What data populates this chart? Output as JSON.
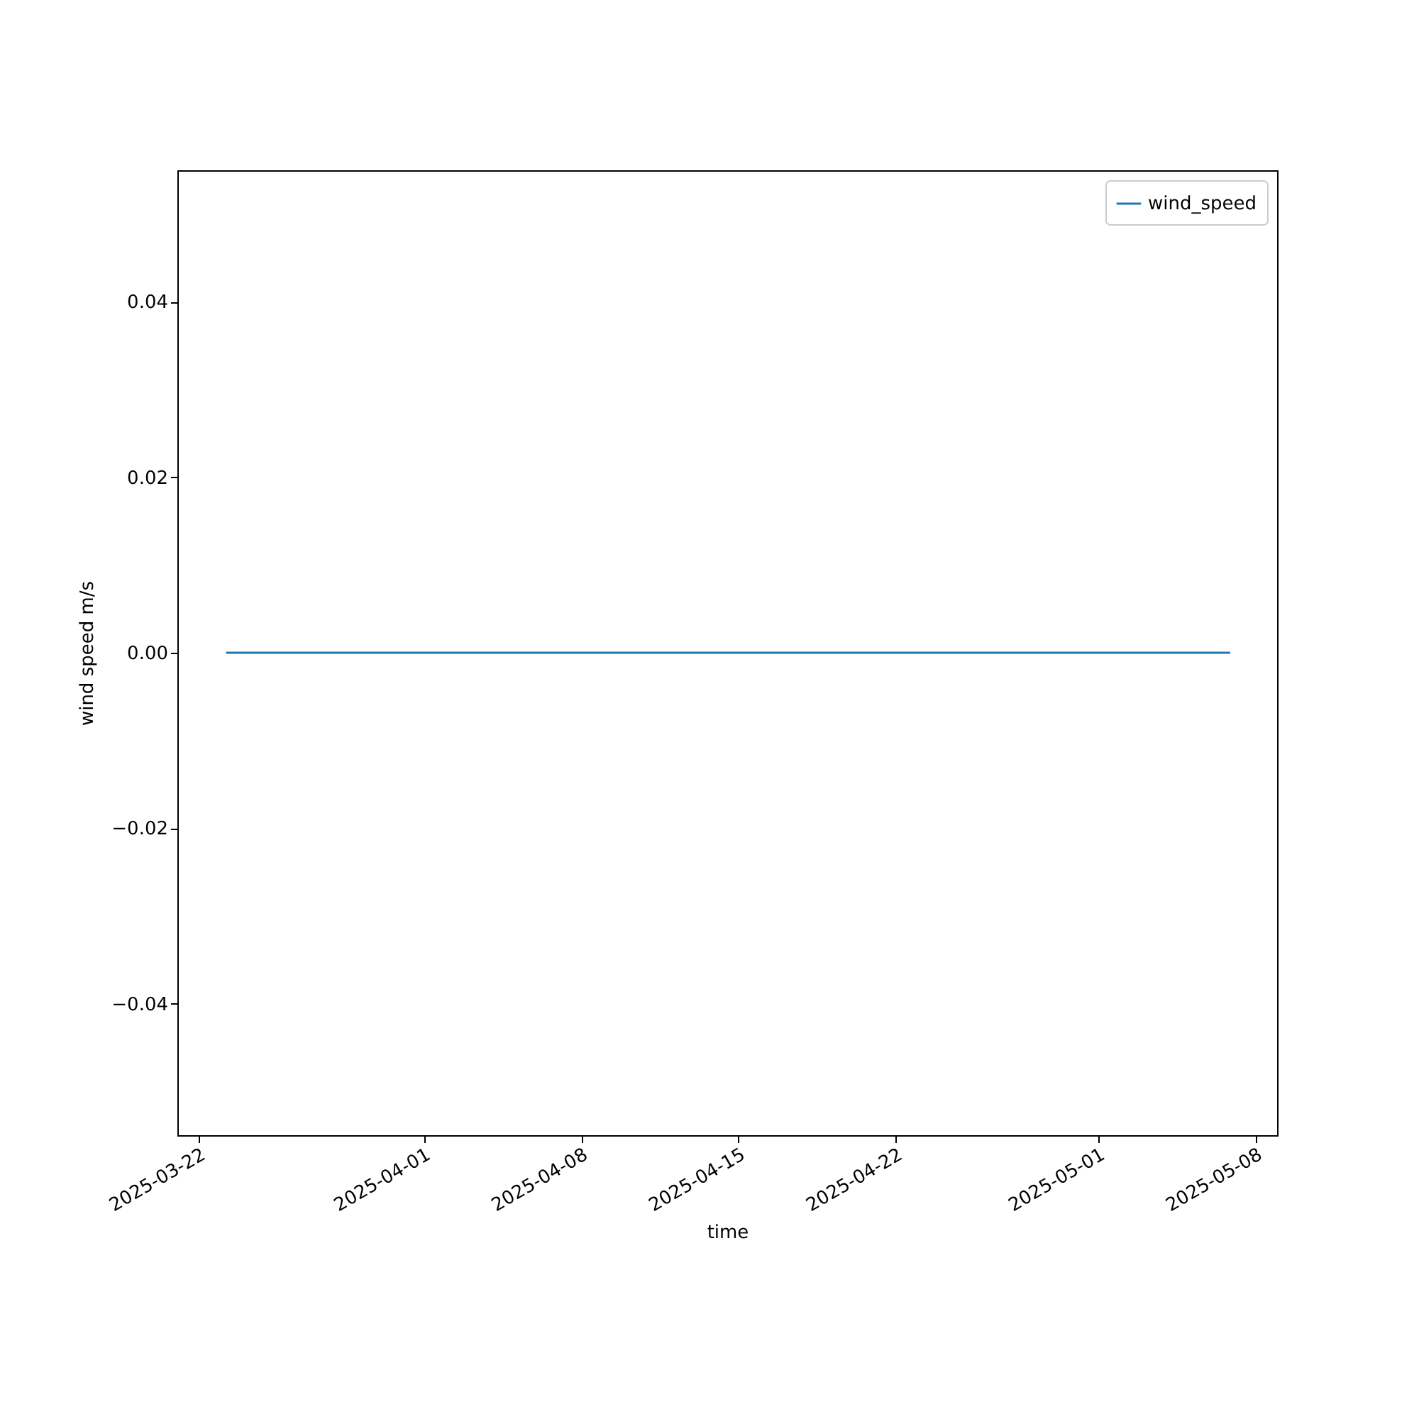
{
  "chart_data": {
    "type": "line",
    "xlabel": "time",
    "ylabel": "wind speed m/s",
    "x": [
      "2025-03-23T05:00",
      "2025-05-06T21:00"
    ],
    "series": [
      {
        "name": "wind_speed",
        "color": "#1f77b4",
        "values": [
          0,
          0
        ]
      }
    ],
    "xlim": [
      "2025-03-21T01:00",
      "2025-05-08T23:00"
    ],
    "xticks": [
      "2025-03-22",
      "2025-04-01",
      "2025-04-08",
      "2025-04-15",
      "2025-04-22",
      "2025-05-01",
      "2025-05-08"
    ],
    "ylim": [
      -0.055,
      0.055
    ],
    "yticks": [
      {
        "value": -0.04,
        "label": "−0.04"
      },
      {
        "value": -0.02,
        "label": "−0.02"
      },
      {
        "value": 0,
        "label": "0.00"
      },
      0.02,
      0.04
    ],
    "grid": false,
    "legend": "top right",
    "marker": "none",
    "line_style": "solid"
  }
}
